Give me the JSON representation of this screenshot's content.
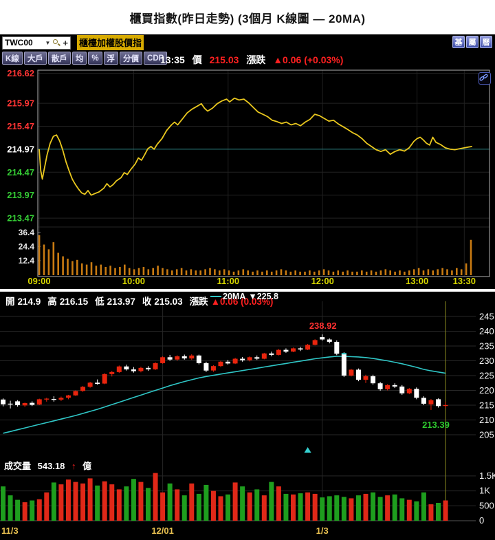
{
  "page": {
    "title": "櫃買指數(昨日走勢) (3個月 K線圖 — 20MA)"
  },
  "icons": {
    "caret_down": "▼"
  },
  "toolbar": {
    "symbol": "TWC00",
    "add_label": "+",
    "symbol_name": "櫃檯加權股價指",
    "corner_buttons": [
      "基",
      "屬",
      "曆"
    ],
    "mode_buttons": [
      "K線",
      "大戶",
      "散戶",
      "均",
      "%",
      "浮",
      "分價",
      "CDP"
    ]
  },
  "quote": {
    "time": "13:35",
    "price_label": "價",
    "price": "215.03",
    "change_label": "漲跌",
    "change": "▲0.06 (+0.03%)"
  },
  "kline_header": {
    "open_label": "開",
    "open": "214.9",
    "high_label": "高",
    "high": "216.15",
    "low_label": "低",
    "low": "213.97",
    "close_label": "收",
    "close": "215.03",
    "change_label": "漲跌",
    "change": "▲0.06 (0.03%)",
    "ma_label": "20MA",
    "ma_value": "▼225.8"
  },
  "volume_row": {
    "label": "成交量",
    "value": "543.18",
    "arrow": "↑",
    "unit": "億"
  },
  "chart_data": [
    {
      "type": "line",
      "name": "intraday-trend",
      "y_top_price": 216.69,
      "prev_close": 214.97,
      "price_ticks": [
        {
          "label": "216.62",
          "value": 216.62,
          "color": "#ff3434"
        },
        {
          "label": "215.97",
          "value": 215.97,
          "color": "#ff3434"
        },
        {
          "label": "215.47",
          "value": 215.47,
          "color": "#ff3434"
        },
        {
          "label": "214.97",
          "value": 214.97,
          "color": "#ffffff"
        },
        {
          "label": "214.47",
          "value": 214.47,
          "color": "#35cd35"
        },
        {
          "label": "213.97",
          "value": 213.97,
          "color": "#35cd35"
        },
        {
          "label": "213.47",
          "value": 213.47,
          "color": "#35cd35"
        }
      ],
      "volume_ticks": [
        {
          "label": "36.4",
          "value": 36.4
        },
        {
          "label": "24.4",
          "value": 24.4
        },
        {
          "label": "12.4",
          "value": 12.4
        }
      ],
      "x_ticks": [
        {
          "label": "09:00",
          "minute": 0
        },
        {
          "label": "10:00",
          "minute": 60
        },
        {
          "label": "11:00",
          "minute": 120
        },
        {
          "label": "12:00",
          "minute": 180
        },
        {
          "label": "13:00",
          "minute": 240
        },
        {
          "label": "13:30",
          "minute": 270
        }
      ],
      "session_minutes": 275,
      "line_color": "#e9c71e",
      "volume_color": "#c97b12",
      "points": [
        [
          0,
          214.97
        ],
        [
          1,
          214.5
        ],
        [
          2,
          214.32
        ],
        [
          3,
          214.5
        ],
        [
          5,
          214.85
        ],
        [
          7,
          215.1
        ],
        [
          9,
          215.25
        ],
        [
          11,
          215.28
        ],
        [
          13,
          215.15
        ],
        [
          15,
          214.95
        ],
        [
          17,
          214.7
        ],
        [
          19,
          214.5
        ],
        [
          21,
          214.32
        ],
        [
          23,
          214.2
        ],
        [
          25,
          214.1
        ],
        [
          27,
          214.02
        ],
        [
          29,
          213.99
        ],
        [
          31,
          214.07
        ],
        [
          33,
          213.97
        ],
        [
          35,
          214.0
        ],
        [
          38,
          214.04
        ],
        [
          41,
          214.12
        ],
        [
          43,
          214.22
        ],
        [
          45,
          214.15
        ],
        [
          47,
          214.2
        ],
        [
          49,
          214.28
        ],
        [
          52,
          214.35
        ],
        [
          54,
          214.46
        ],
        [
          56,
          214.42
        ],
        [
          58,
          214.52
        ],
        [
          61,
          214.65
        ],
        [
          63,
          214.78
        ],
        [
          65,
          214.73
        ],
        [
          67,
          214.85
        ],
        [
          69,
          214.98
        ],
        [
          71,
          215.03
        ],
        [
          73,
          214.97
        ],
        [
          75,
          215.08
        ],
        [
          78,
          215.2
        ],
        [
          81,
          215.38
        ],
        [
          84,
          215.5
        ],
        [
          86,
          215.56
        ],
        [
          88,
          215.5
        ],
        [
          91,
          215.63
        ],
        [
          94,
          215.76
        ],
        [
          97,
          215.84
        ],
        [
          100,
          215.9
        ],
        [
          103,
          215.96
        ],
        [
          105,
          215.86
        ],
        [
          107,
          215.8
        ],
        [
          110,
          215.86
        ],
        [
          113,
          215.96
        ],
        [
          116,
          216.02
        ],
        [
          119,
          216.06
        ],
        [
          121,
          216.0
        ],
        [
          124,
          216.08
        ],
        [
          127,
          216.04
        ],
        [
          130,
          216.06
        ],
        [
          133,
          215.98
        ],
        [
          136,
          215.88
        ],
        [
          139,
          215.78
        ],
        [
          142,
          215.73
        ],
        [
          145,
          215.68
        ],
        [
          148,
          215.6
        ],
        [
          151,
          215.57
        ],
        [
          154,
          215.53
        ],
        [
          157,
          215.56
        ],
        [
          160,
          215.5
        ],
        [
          163,
          215.53
        ],
        [
          166,
          215.48
        ],
        [
          169,
          215.56
        ],
        [
          172,
          215.62
        ],
        [
          175,
          215.73
        ],
        [
          178,
          215.7
        ],
        [
          181,
          215.64
        ],
        [
          184,
          215.58
        ],
        [
          187,
          215.6
        ],
        [
          190,
          215.52
        ],
        [
          193,
          215.46
        ],
        [
          196,
          215.4
        ],
        [
          199,
          215.33
        ],
        [
          202,
          215.28
        ],
        [
          205,
          215.2
        ],
        [
          208,
          215.1
        ],
        [
          211,
          215.03
        ],
        [
          214,
          214.96
        ],
        [
          217,
          214.92
        ],
        [
          220,
          214.96
        ],
        [
          223,
          214.86
        ],
        [
          226,
          214.92
        ],
        [
          229,
          214.96
        ],
        [
          232,
          214.93
        ],
        [
          235,
          215.0
        ],
        [
          238,
          215.14
        ],
        [
          240,
          215.2
        ],
        [
          242,
          215.23
        ],
        [
          244,
          215.17
        ],
        [
          246,
          215.1
        ],
        [
          248,
          215.06
        ],
        [
          250,
          215.23
        ],
        [
          252,
          215.12
        ],
        [
          255,
          215.07
        ],
        [
          258,
          215.0
        ],
        [
          261,
          214.97
        ],
        [
          264,
          214.96
        ],
        [
          267,
          214.98
        ],
        [
          270,
          215.0
        ],
        [
          273,
          215.02
        ],
        [
          275,
          215.03
        ]
      ],
      "volumes": [
        34,
        26,
        22,
        28,
        19,
        16,
        14,
        12,
        13,
        10,
        9,
        11,
        8,
        9,
        7,
        8,
        6,
        7,
        9,
        6,
        5,
        6,
        7,
        5,
        6,
        8,
        6,
        5,
        4,
        5,
        6,
        4,
        5,
        4,
        4,
        5,
        6,
        5,
        4,
        5,
        4,
        3,
        4,
        5,
        4,
        3,
        4,
        3,
        4,
        3,
        4,
        5,
        4,
        3,
        4,
        3,
        3,
        4,
        3,
        4,
        5,
        4,
        3,
        4,
        3,
        4,
        3,
        3,
        4,
        3,
        4,
        3,
        4,
        5,
        4,
        3,
        4,
        3,
        4,
        5,
        6,
        4,
        5,
        4,
        5,
        6,
        5,
        4,
        6,
        5,
        10,
        30
      ]
    },
    {
      "type": "candlestick",
      "name": "kline-3month-20ma",
      "price_ticks": [
        245,
        240,
        235,
        230,
        225,
        220,
        215,
        210,
        205
      ],
      "volume_ticks": [
        {
          "label": "1.5K",
          "value": 1500
        },
        {
          "label": "1K",
          "value": 1000
        },
        {
          "label": "500",
          "value": 500
        },
        {
          "label": "0",
          "value": 0
        }
      ],
      "x_ticks": [
        {
          "label": "11/3",
          "index": 0,
          "align": "start"
        },
        {
          "label": "12/01",
          "index": 22,
          "align": "middle"
        },
        {
          "label": "1/3",
          "index": 44,
          "align": "middle"
        }
      ],
      "up_color": "#e8250e",
      "down_color": "#ffffff",
      "vol_up_color": "#e02818",
      "vol_down_color": "#1e9e1e",
      "ma_color": "#2fc6c6",
      "candles": [
        [
          216.9,
          217.3,
          214.6,
          215.3
        ],
        [
          215.5,
          216.5,
          213.9,
          215.2
        ],
        [
          216.3,
          216.7,
          214.5,
          215.0
        ],
        [
          214.9,
          215.9,
          214.4,
          215.7
        ],
        [
          215.8,
          216.3,
          214.7,
          215.1
        ],
        [
          215.2,
          217.2,
          215.0,
          217.0
        ],
        [
          217.0,
          217.5,
          216.2,
          217.2
        ],
        [
          217.1,
          218.0,
          216.2,
          216.9
        ],
        [
          216.9,
          217.9,
          216.4,
          217.5
        ],
        [
          217.5,
          218.5,
          217.0,
          218.3
        ],
        [
          218.3,
          220.0,
          218.1,
          219.8
        ],
        [
          219.8,
          221.5,
          219.5,
          221.2
        ],
        [
          221.2,
          222.9,
          220.9,
          222.6
        ],
        [
          222.6,
          223.7,
          221.9,
          222.2
        ],
        [
          222.3,
          225.8,
          222.1,
          225.5
        ],
        [
          225.5,
          226.6,
          224.7,
          226.2
        ],
        [
          226.2,
          228.4,
          225.9,
          228.1
        ],
        [
          228.1,
          228.7,
          226.7,
          227.1
        ],
        [
          227.1,
          227.9,
          226.0,
          226.5
        ],
        [
          226.5,
          228.0,
          226.1,
          227.6
        ],
        [
          227.6,
          228.2,
          226.6,
          227.1
        ],
        [
          227.1,
          229.5,
          226.9,
          229.2
        ],
        [
          229.2,
          231.5,
          229.0,
          231.2
        ],
        [
          231.2,
          232.0,
          230.0,
          230.4
        ],
        [
          230.4,
          231.9,
          230.0,
          231.5
        ],
        [
          231.5,
          232.1,
          230.4,
          230.8
        ],
        [
          230.8,
          232.2,
          230.3,
          231.8
        ],
        [
          231.8,
          232.1,
          228.8,
          229.2
        ],
        [
          229.2,
          229.7,
          226.2,
          226.7
        ],
        [
          226.7,
          228.5,
          226.3,
          228.2
        ],
        [
          228.2,
          230.0,
          227.9,
          229.7
        ],
        [
          229.7,
          230.3,
          228.7,
          229.1
        ],
        [
          229.1,
          231.0,
          228.9,
          230.7
        ],
        [
          230.7,
          231.3,
          229.7,
          230.2
        ],
        [
          230.2,
          231.5,
          229.8,
          231.2
        ],
        [
          231.2,
          231.8,
          230.3,
          230.7
        ],
        [
          230.7,
          232.7,
          230.5,
          232.5
        ],
        [
          232.5,
          233.1,
          231.5,
          232.0
        ],
        [
          232.0,
          234.0,
          231.8,
          233.7
        ],
        [
          233.7,
          234.2,
          232.7,
          233.1
        ],
        [
          233.1,
          234.5,
          232.9,
          234.2
        ],
        [
          234.2,
          234.7,
          233.3,
          233.8
        ],
        [
          233.8,
          235.7,
          233.6,
          235.4
        ],
        [
          235.4,
          237.3,
          235.2,
          237.0
        ],
        [
          238.0,
          238.92,
          236.8,
          237.2
        ],
        [
          237.2,
          237.6,
          235.9,
          236.4
        ],
        [
          236.4,
          236.9,
          231.9,
          232.4
        ],
        [
          232.4,
          232.9,
          224.5,
          225.0
        ],
        [
          225.0,
          227.3,
          224.7,
          227.0
        ],
        [
          227.0,
          227.4,
          223.1,
          223.6
        ],
        [
          223.6,
          225.3,
          222.5,
          224.8
        ],
        [
          224.8,
          225.3,
          221.9,
          222.4
        ],
        [
          222.4,
          222.9,
          219.9,
          220.4
        ],
        [
          220.4,
          222.1,
          220.0,
          221.8
        ],
        [
          221.8,
          222.4,
          220.8,
          221.3
        ],
        [
          221.3,
          221.8,
          218.5,
          219.0
        ],
        [
          219.0,
          220.8,
          218.7,
          220.5
        ],
        [
          220.5,
          221.0,
          217.0,
          217.5
        ],
        [
          217.5,
          218.0,
          215.0,
          215.5
        ],
        [
          215.3,
          217.1,
          213.39,
          216.7
        ],
        [
          217.0,
          217.3,
          214.2,
          214.7
        ],
        [
          214.9,
          216.15,
          213.97,
          215.03
        ]
      ],
      "volumes": [
        1150,
        850,
        700,
        620,
        680,
        720,
        950,
        1280,
        1220,
        1380,
        1300,
        1250,
        1420,
        1180,
        1320,
        1220,
        1050,
        1150,
        1400,
        1300,
        1100,
        1600,
        950,
        1250,
        1050,
        850,
        1250,
        900,
        1200,
        1000,
        820,
        880,
        1280,
        1150,
        950,
        1050,
        850,
        1300,
        1150,
        900,
        880,
        920,
        950,
        900,
        780,
        820,
        850,
        800,
        750,
        850,
        900,
        950,
        800,
        850,
        880,
        750,
        700,
        650,
        950,
        550,
        600,
        680
      ],
      "ma20": [
        205.5,
        206.1,
        206.7,
        207.3,
        207.9,
        208.5,
        209.1,
        209.7,
        210.3,
        210.9,
        211.5,
        212.2,
        212.9,
        213.6,
        214.4,
        215.2,
        216.0,
        216.8,
        217.6,
        218.4,
        219.2,
        220.0,
        220.8,
        221.6,
        222.3,
        223.0,
        223.6,
        224.2,
        224.7,
        225.1,
        225.5,
        225.9,
        226.3,
        226.7,
        227.1,
        227.5,
        227.9,
        228.3,
        228.7,
        229.1,
        229.5,
        229.9,
        230.3,
        230.7,
        231.0,
        231.3,
        231.5,
        231.5,
        231.4,
        231.3,
        231.1,
        230.8,
        230.4,
        230.0,
        229.5,
        229.0,
        228.4,
        227.8,
        227.1,
        226.6,
        226.2,
        225.8
      ],
      "annotations": {
        "high_label": {
          "text": "238.92",
          "index": 44,
          "color": "#ff3030"
        },
        "low_label": {
          "text": "213.39",
          "index": 59,
          "color": "#2eca2e"
        },
        "signal_triangle": {
          "index": 42,
          "color": "#35d0d0"
        },
        "selected_candle_index": 47,
        "crosshair_index": 61,
        "crosshair_color": "#8a8a20"
      }
    }
  ]
}
